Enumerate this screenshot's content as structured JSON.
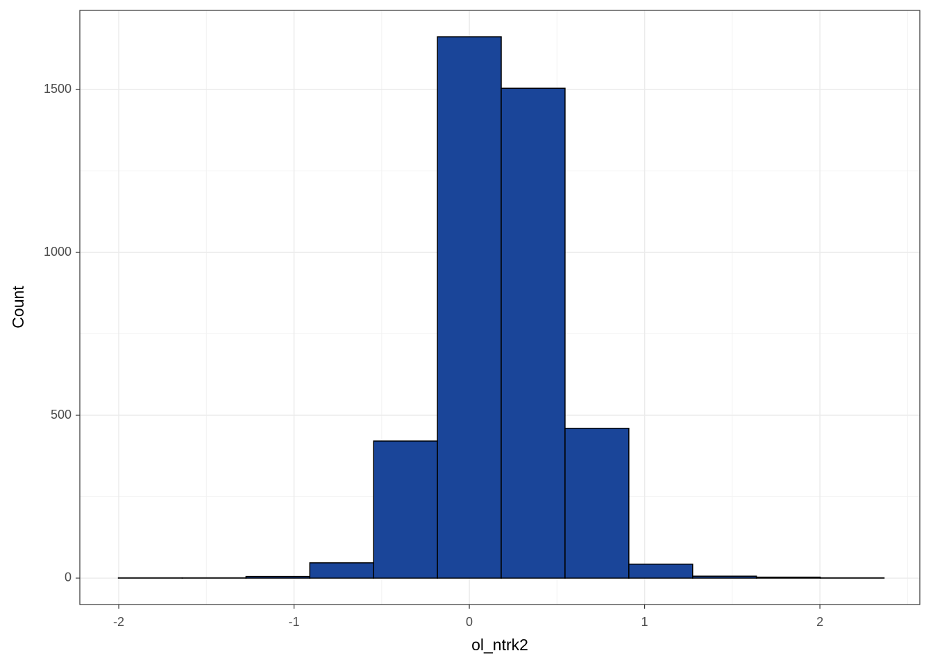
{
  "chart_data": {
    "type": "histogram",
    "x_label": "ol_ntrk2",
    "y_label": "Count",
    "bins": [
      -2.002,
      -1.638,
      -1.274,
      -0.91,
      -0.546,
      -0.182,
      0.182,
      0.546,
      0.91,
      1.274,
      1.638,
      2.002,
      2.366
    ],
    "values": [
      1,
      1,
      5,
      47,
      421,
      1662,
      1504,
      460,
      43,
      6,
      3,
      1
    ],
    "color": "#1a4599",
    "xlim": [
      -2.222,
      2.57
    ],
    "ylim": [
      -81,
      1743
    ],
    "xticks": [
      -2,
      -1,
      0,
      1,
      2
    ],
    "yticks": [
      0,
      500,
      1000,
      1500
    ],
    "grid": true,
    "minor_grid": true
  }
}
